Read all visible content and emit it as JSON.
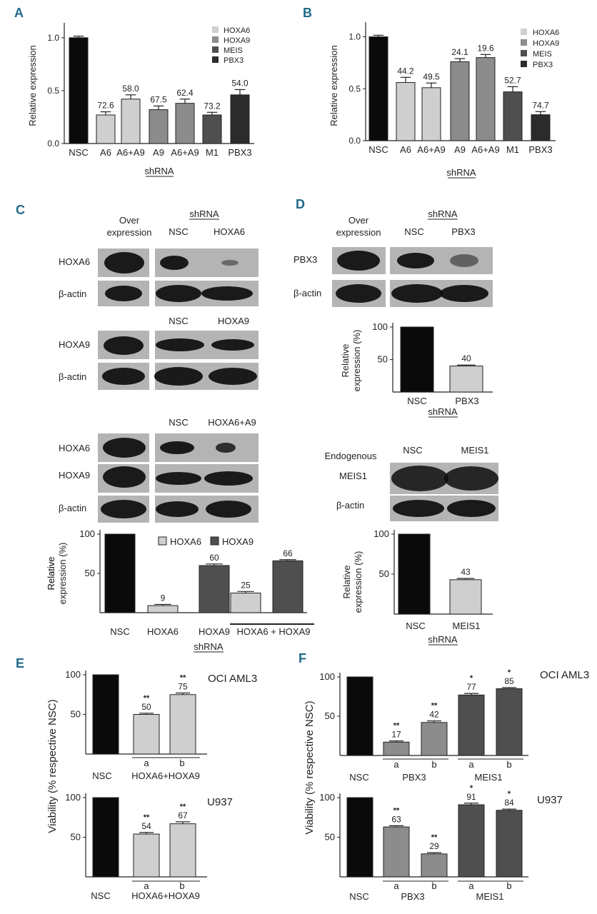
{
  "colors": {
    "black": "#0a0a0a",
    "light": "#cfcfcf",
    "mid": "#8c8c8c",
    "dark": "#4f4f4f",
    "darker": "#2b2b2b",
    "panel_letter": "#1f6a8a"
  },
  "panels": {
    "A": "A",
    "B": "B",
    "C": "C",
    "D": "D",
    "E": "E",
    "F": "F"
  },
  "chart_data": [
    {
      "id": "A",
      "type": "bar",
      "ylabel": "Relative expression",
      "xlabel": "shRNA",
      "ylim": [
        0,
        1.1
      ],
      "yticks": [
        "0.0",
        "0.5",
        "1.0"
      ],
      "ytick_values": [
        0,
        0.5,
        1.0
      ],
      "categories": [
        "NSC",
        "A6",
        "A6+A9",
        "A9",
        "A6+A9",
        "M1",
        "PBX3"
      ],
      "values": [
        1.0,
        0.27,
        0.42,
        0.32,
        0.38,
        0.27,
        0.46
      ],
      "errors": [
        0.015,
        0.03,
        0.04,
        0.035,
        0.04,
        0.025,
        0.05
      ],
      "bar_colors": [
        "black",
        "light",
        "light",
        "mid",
        "mid",
        "dark",
        "darker"
      ],
      "data_labels": [
        "",
        "72.6",
        "58.0",
        "67.5",
        "62.4",
        "73.2",
        "54.0"
      ],
      "legend": [
        {
          "label": "HOXA6",
          "color": "light"
        },
        {
          "label": "HOXA9",
          "color": "mid"
        },
        {
          "label": "MEIS",
          "color": "dark"
        },
        {
          "label": "PBX3",
          "color": "darker"
        }
      ]
    },
    {
      "id": "B",
      "type": "bar",
      "ylabel": "Relative expression",
      "xlabel": "shRNA",
      "ylim": [
        0,
        1.1
      ],
      "yticks": [
        "0.0",
        "0.5",
        "1.0"
      ],
      "ytick_values": [
        0,
        0.5,
        1.0
      ],
      "categories": [
        "NSC",
        "A6",
        "A6+A9",
        "A9",
        "A6+A9",
        "M1",
        "PBX3"
      ],
      "values": [
        1.0,
        0.56,
        0.51,
        0.76,
        0.8,
        0.47,
        0.25
      ],
      "errors": [
        0.015,
        0.05,
        0.045,
        0.03,
        0.03,
        0.05,
        0.03
      ],
      "bar_colors": [
        "black",
        "light",
        "light",
        "mid",
        "mid",
        "dark",
        "darker"
      ],
      "data_labels": [
        "",
        "44.2",
        "49.5",
        "24.1",
        "19.6",
        "52.7",
        "74.7"
      ],
      "legend": [
        {
          "label": "HOXA6",
          "color": "light"
        },
        {
          "label": "HOXA9",
          "color": "mid"
        },
        {
          "label": "MEIS",
          "color": "dark"
        },
        {
          "label": "PBX3",
          "color": "darker"
        }
      ]
    },
    {
      "id": "C",
      "type": "bar",
      "ylabel": "Relative\nexpression (%)",
      "xlabel": "shRNA",
      "ylim": [
        0,
        100
      ],
      "yticks": [
        "100",
        "50"
      ],
      "ytick_values": [
        100,
        50
      ],
      "categories": [
        "NSC",
        "HOXA6",
        "HOXA9",
        "",
        ""
      ],
      "group_label": "HOXA6 + HOXA9",
      "values": [
        100,
        9,
        60,
        25,
        66
      ],
      "errors": [
        0,
        1.5,
        2,
        2,
        1.5
      ],
      "bar_colors": [
        "black",
        "light",
        "dark",
        "light",
        "dark"
      ],
      "data_labels": [
        "",
        "9",
        "60",
        "25",
        "66"
      ],
      "legend": [
        {
          "label": "HOXA6",
          "color": "light"
        },
        {
          "label": "HOXA9",
          "color": "dark"
        }
      ]
    },
    {
      "id": "D1",
      "type": "bar",
      "ylabel": "Relative\nexpression (%)",
      "xlabel": "shRNA",
      "ylim": [
        0,
        100
      ],
      "yticks": [
        "100",
        "50"
      ],
      "ytick_values": [
        100,
        50
      ],
      "categories": [
        "NSC",
        "PBX3"
      ],
      "values": [
        100,
        40
      ],
      "errors": [
        0,
        1.5
      ],
      "bar_colors": [
        "black",
        "light"
      ],
      "data_labels": [
        "",
        "40"
      ]
    },
    {
      "id": "D2",
      "type": "bar",
      "ylabel": "Relative\nexpression (%)",
      "xlabel": "shRNA",
      "ylim": [
        0,
        100
      ],
      "yticks": [
        "100",
        "50"
      ],
      "ytick_values": [
        100,
        50
      ],
      "categories": [
        "NSC",
        "MEIS1"
      ],
      "values": [
        100,
        43
      ],
      "errors": [
        0,
        1.5
      ],
      "bar_colors": [
        "black",
        "light"
      ],
      "data_labels": [
        "",
        "43"
      ]
    },
    {
      "id": "E1",
      "type": "bar",
      "title": "OCI AML3",
      "ylim": [
        0,
        100
      ],
      "yticks": [
        "100",
        "50"
      ],
      "ytick_values": [
        100,
        50
      ],
      "categories": [
        "NSC",
        "a",
        "b"
      ],
      "group_label": "HOXA6+HOXA9",
      "values": [
        100,
        50,
        75
      ],
      "errors": [
        0,
        1.5,
        2
      ],
      "bar_colors": [
        "black",
        "light",
        "light"
      ],
      "data_labels": [
        "",
        "50",
        "75"
      ],
      "stars": [
        "",
        "**",
        "**"
      ]
    },
    {
      "id": "E2",
      "type": "bar",
      "title": "U937",
      "ylim": [
        0,
        100
      ],
      "yticks": [
        "100",
        "50"
      ],
      "ytick_values": [
        100,
        50
      ],
      "categories": [
        "NSC",
        "a",
        "b"
      ],
      "group_label": "HOXA6+HOXA9",
      "values": [
        100,
        54,
        67
      ],
      "errors": [
        0,
        2,
        2.5
      ],
      "bar_colors": [
        "black",
        "light",
        "light"
      ],
      "data_labels": [
        "",
        "54",
        "67"
      ],
      "stars": [
        "",
        "**",
        "**"
      ]
    },
    {
      "id": "F1",
      "type": "bar",
      "title": "OCI AML3",
      "ylim": [
        0,
        100
      ],
      "yticks": [
        "100",
        "50"
      ],
      "ytick_values": [
        100,
        50
      ],
      "categories": [
        "NSC",
        "a",
        "b",
        "a",
        "b"
      ],
      "groups": [
        "PBX3",
        "MEIS1"
      ],
      "values": [
        100,
        17,
        42,
        77,
        85
      ],
      "errors": [
        0,
        1.5,
        2,
        2,
        1.5
      ],
      "bar_colors": [
        "black",
        "mid",
        "mid",
        "dark",
        "dark"
      ],
      "data_labels": [
        "",
        "17",
        "42",
        "77",
        "85"
      ],
      "stars": [
        "",
        "**",
        "**",
        "*",
        "*"
      ]
    },
    {
      "id": "F2",
      "type": "bar",
      "title": "U937",
      "ylim": [
        0,
        100
      ],
      "yticks": [
        "100",
        "50"
      ],
      "ytick_values": [
        100,
        50
      ],
      "categories": [
        "NSC",
        "a",
        "b",
        "a",
        "b"
      ],
      "groups": [
        "PBX3",
        "MEIS1"
      ],
      "values": [
        100,
        63,
        29,
        91,
        84
      ],
      "errors": [
        0,
        1.5,
        1.5,
        2,
        1.5
      ],
      "bar_colors": [
        "black",
        "mid",
        "mid",
        "dark",
        "dark"
      ],
      "data_labels": [
        "",
        "63",
        "29",
        "91",
        "84"
      ],
      "stars": [
        "",
        "**",
        "**",
        "*",
        "*"
      ]
    }
  ],
  "viability_ylabel": "Viability (% respective NSC)",
  "blots": {
    "C": {
      "over_expression": "Over\nexpression",
      "shrna": "shRNA",
      "row1": {
        "cols": [
          "NSC",
          "HOXA6"
        ],
        "labels": [
          "HOXA6",
          "β-actin"
        ]
      },
      "row2": {
        "cols": [
          "NSC",
          "HOXA9"
        ],
        "labels": [
          "HOXA9",
          "β-actin"
        ]
      },
      "row3": {
        "cols": [
          "NSC",
          "HOXA6+A9"
        ],
        "labels": [
          "HOXA6",
          "HOXA9",
          "β-actin"
        ]
      }
    },
    "D": {
      "over_expression": "Over\nexpression",
      "shrna": "shRNA",
      "row1": {
        "cols": [
          "NSC",
          "PBX3"
        ],
        "labels": [
          "PBX3",
          "β-actin"
        ]
      },
      "row2": {
        "endogenous": "Endogenous",
        "cols": [
          "NSC",
          "MEIS1"
        ],
        "labels": [
          "MEIS1",
          "β-actin"
        ]
      }
    }
  }
}
